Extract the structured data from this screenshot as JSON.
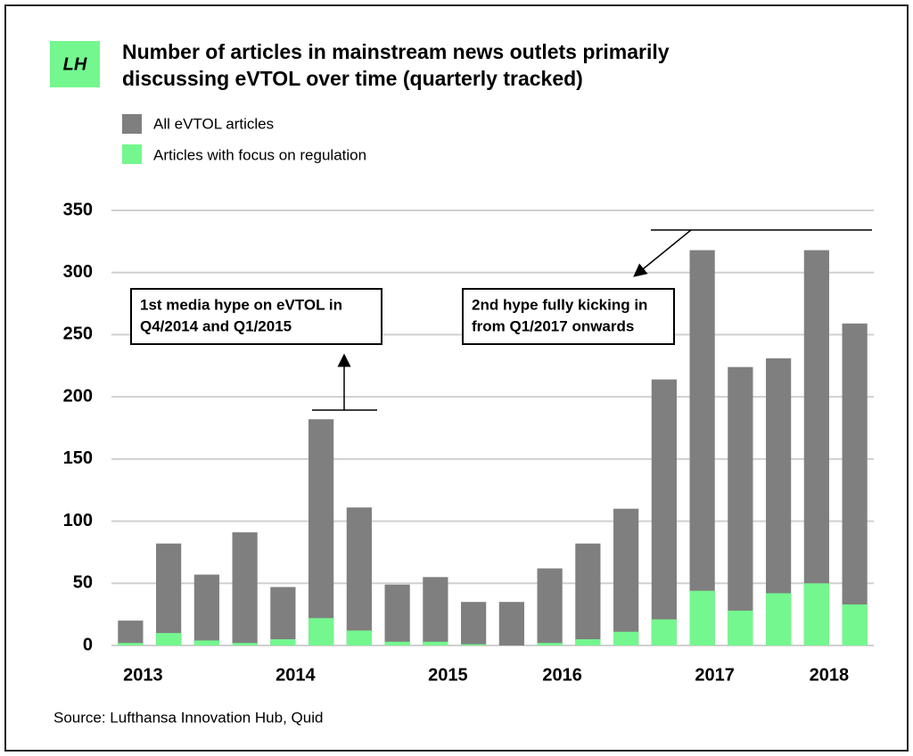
{
  "logo": "LH",
  "chart_data": {
    "type": "bar",
    "title": [
      "Number of articles in mainstream news outlets primarily",
      "discussing eVTOL over time (quarterly tracked)"
    ],
    "categories": [
      "2013",
      null,
      null,
      null,
      "2014",
      null,
      null,
      null,
      "2015",
      null,
      null,
      "2016",
      null,
      null,
      null,
      "2017",
      null,
      null,
      "2018",
      null
    ],
    "series": [
      {
        "name": "All eVTOL articles",
        "color": "#7f7f7f",
        "values": [
          20,
          82,
          57,
          91,
          47,
          182,
          111,
          49,
          55,
          35,
          35,
          62,
          82,
          110,
          214,
          318,
          224,
          231,
          318,
          259
        ]
      },
      {
        "name": "Articles with focus on regulation",
        "color": "#74f78e",
        "values": [
          2,
          10,
          4,
          2,
          5,
          22,
          12,
          3,
          3,
          1,
          0,
          2,
          5,
          11,
          21,
          44,
          28,
          42,
          50,
          33
        ]
      }
    ],
    "ylim": [
      0,
      350
    ],
    "yticks": [
      0,
      50,
      100,
      150,
      200,
      250,
      300,
      350
    ],
    "grid": true,
    "annotations": [
      [
        "1st media hype on eVTOL in",
        "Q4/2014 and Q1/2015"
      ],
      [
        "2nd hype fully kicking in",
        "from Q1/2017 onwards"
      ]
    ],
    "source": "Source: Lufthansa Innovation Hub, Quid"
  }
}
